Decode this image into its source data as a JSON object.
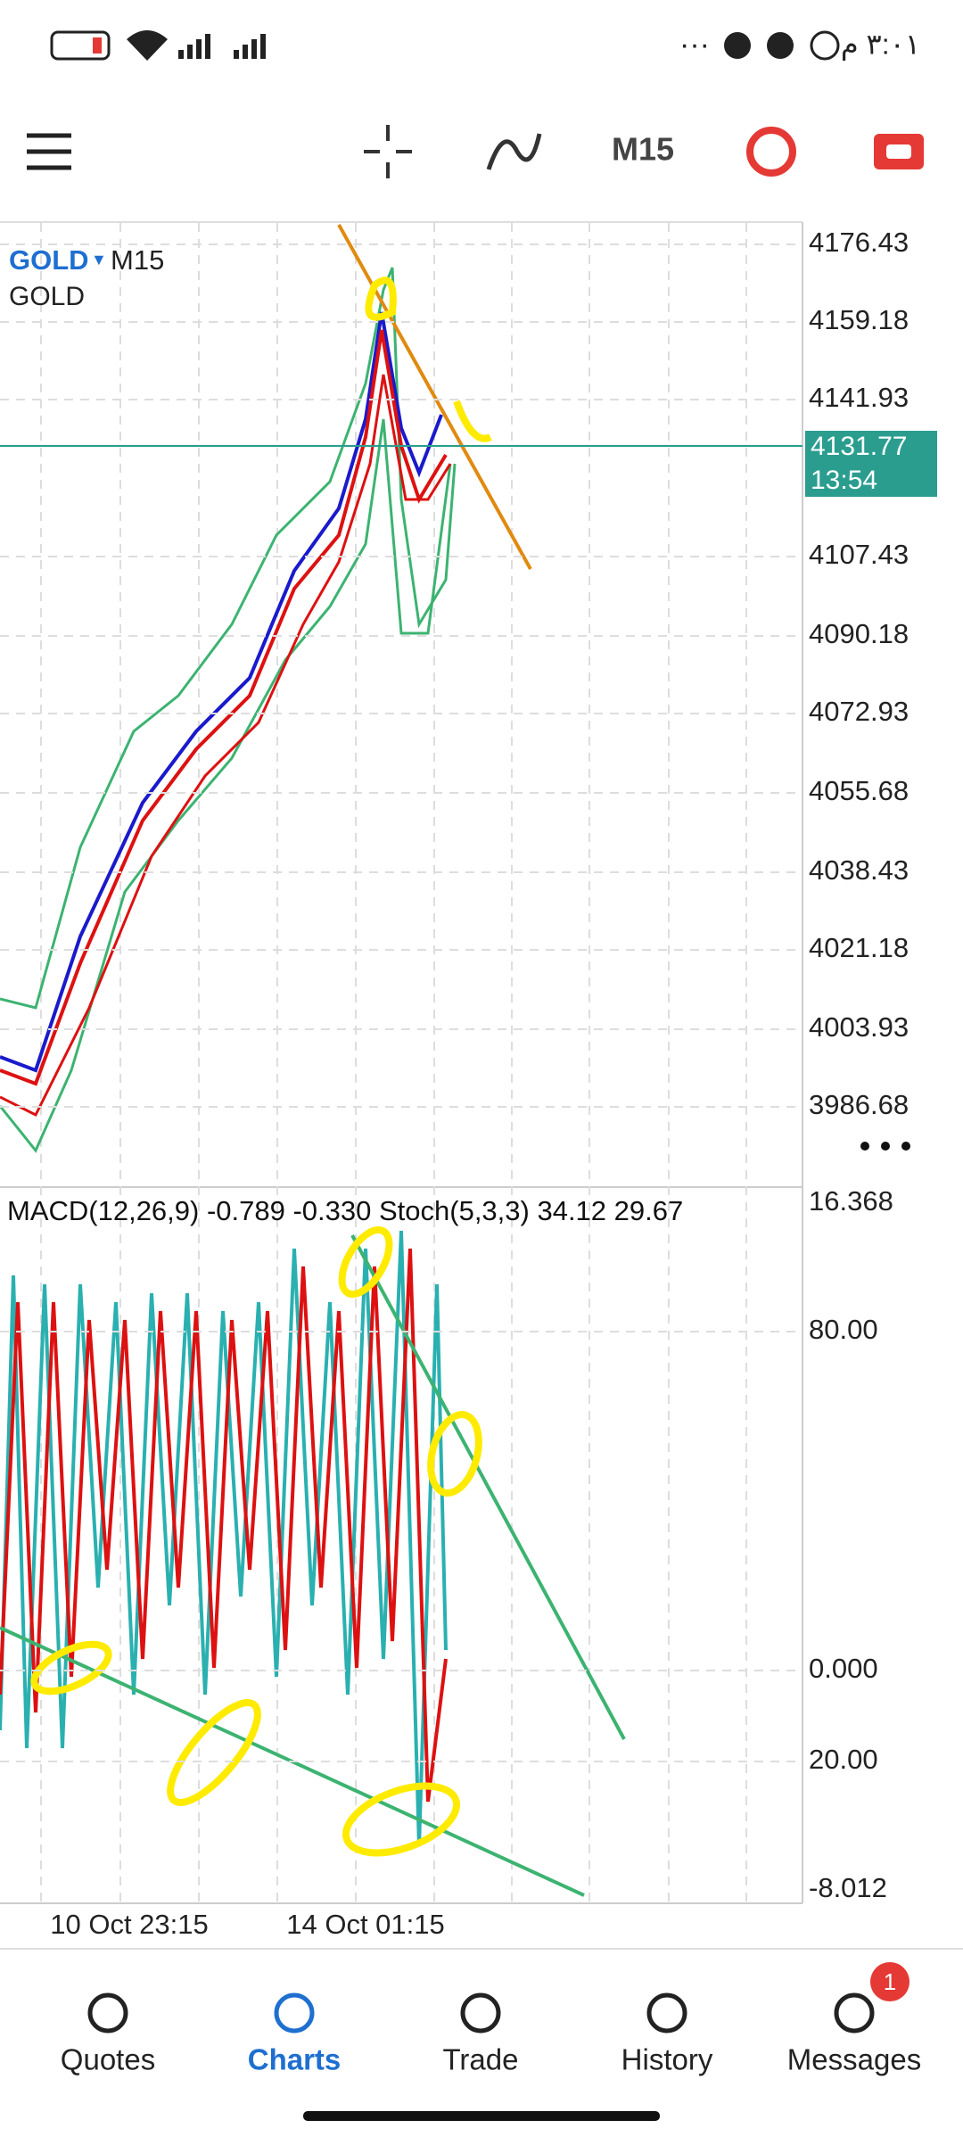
{
  "status_bar": {
    "time": "٣:٠١ م"
  },
  "toolbar": {
    "timeframe": "M15"
  },
  "chart": {
    "symbol": "GOLD",
    "timeframe": "M15",
    "description": "GOLD",
    "price_axis": [
      "4176.43",
      "4159.18",
      "4141.93",
      "4107.43",
      "4090.18",
      "4072.93",
      "4055.68",
      "4038.43",
      "4021.18",
      "4003.93",
      "3986.68"
    ],
    "current_price": "4131.77",
    "countdown": "13:54"
  },
  "indicator": {
    "label": "MACD(12,26,9) -0.789 -0.330 Stoch(5,3,3) 34.12 29.67",
    "axis": [
      "16.368",
      "80.00",
      "0.000",
      "20.00",
      "-8.012"
    ]
  },
  "time_axis": [
    "10 Oct 23:15",
    "14 Oct 01:15"
  ],
  "nav": {
    "items": [
      "Quotes",
      "Charts",
      "Trade",
      "History",
      "Messages"
    ],
    "badge": "1"
  }
}
